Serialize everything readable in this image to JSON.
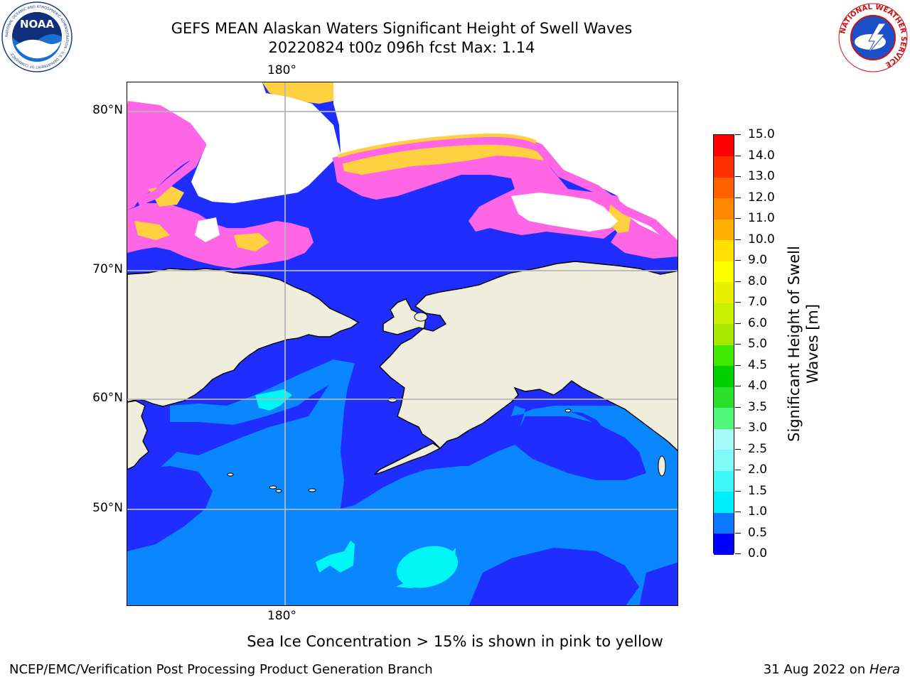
{
  "title": {
    "line1": "GEFS MEAN Alaskan Waters Significant Height of Swell Waves",
    "line2": "20220824 t00z 096h fcst   Max: 1.14"
  },
  "map": {
    "lat_labels": [
      "80°N",
      "70°N",
      "60°N",
      "50°N"
    ],
    "lon_label_top": "180°",
    "lon_label_bottom": "180°",
    "colors": {
      "land": "#efeedd",
      "wave_0_0_5": "#1f2dff",
      "wave_0_5_1_0": "#0a86ff",
      "wave_1_0_1_5": "#00f5f5",
      "ice_pink": "#ff66e6",
      "ice_yellow": "#ffd040",
      "gridline": "#b5b5b5"
    }
  },
  "colorbar": {
    "label": "Significant Height of Swell Waves [m]",
    "ticks": [
      "0.0",
      "0.5",
      "1.0",
      "1.5",
      "2.0",
      "2.5",
      "3.0",
      "3.5",
      "4.0",
      "4.5",
      "5.0",
      "6.0",
      "7.0",
      "8.0",
      "9.0",
      "10.0",
      "11.0",
      "12.0",
      "13.0",
      "14.0",
      "15.0"
    ],
    "colors": [
      "#0000ff",
      "#0a78ff",
      "#00ecff",
      "#40f5f5",
      "#80f9f9",
      "#a8fbfb",
      "#50f87a",
      "#2be02b",
      "#00d000",
      "#40e800",
      "#a8e800",
      "#c8f000",
      "#e8f000",
      "#ffff00",
      "#ffe000",
      "#ffb000",
      "#ff8800",
      "#ff6000",
      "#ff3000",
      "#ff0000"
    ]
  },
  "note": "Sea Ice Concentration > 15% is shown in pink to yellow",
  "footer": {
    "left": "NCEP/EMC/Verification Post Processing Product Generation Branch",
    "right_prefix": "31 Aug 2022 on ",
    "right_machine": "Hera"
  },
  "logos": {
    "noaa": {
      "text": "NOAA",
      "ring": "NATIONAL OCEANIC AND ATMOSPHERIC ADMINISTRATION · U.S. DEPARTMENT OF COMMERCE"
    },
    "nws": {
      "text": "NATIONAL WEATHER SERVICE"
    }
  }
}
